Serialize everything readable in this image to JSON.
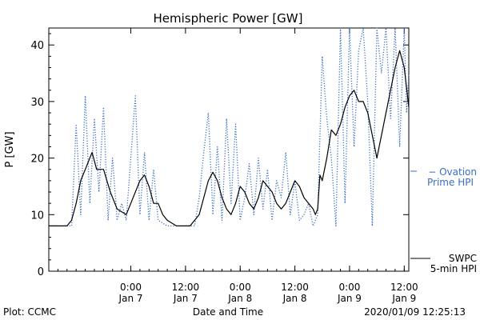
{
  "chart_data": {
    "type": "line",
    "title": "Hemispheric Power [GW]",
    "xlabel": "Date and Time",
    "ylabel": "P [GW]",
    "xlim": [
      "2020-01-06 06:00",
      "2020-01-09 13:00"
    ],
    "ylim": [
      0,
      43
    ],
    "yticks": [
      0,
      10,
      20,
      30,
      40
    ],
    "xticks": [
      {
        "t": "2020-01-07 00:00",
        "label1": "0:00",
        "label2": "Jan 7"
      },
      {
        "t": "2020-01-07 12:00",
        "label1": "12:00",
        "label2": "Jan 7"
      },
      {
        "t": "2020-01-08 00:00",
        "label1": "0:00",
        "label2": "Jan 8"
      },
      {
        "t": "2020-01-08 12:00",
        "label1": "12:00",
        "label2": "Jan 8"
      },
      {
        "t": "2020-01-09 00:00",
        "label1": "0:00",
        "label2": "Jan 9"
      },
      {
        "t": "2020-01-09 12:00",
        "label1": "12:00",
        "label2": "Jan 9"
      }
    ],
    "footer_left": "Plot: CCMC",
    "footer_right": "2020/01/09 12:25:13",
    "series": [
      {
        "name": "SWPC 5-min HPI",
        "legend_line1": "SWPC",
        "legend_line2": "5-min HPI",
        "color": "#000000",
        "style": "solid",
        "points": [
          [
            "2020-01-06 06:00",
            8
          ],
          [
            "2020-01-06 10:00",
            8
          ],
          [
            "2020-01-06 11:00",
            9
          ],
          [
            "2020-01-06 12:00",
            12
          ],
          [
            "2020-01-06 13:00",
            16
          ],
          [
            "2020-01-06 14:00",
            18
          ],
          [
            "2020-01-06 15:30",
            21
          ],
          [
            "2020-01-06 16:30",
            18
          ],
          [
            "2020-01-06 18:00",
            18
          ],
          [
            "2020-01-06 19:30",
            14
          ],
          [
            "2020-01-06 21:00",
            11
          ],
          [
            "2020-01-06 23:00",
            10
          ],
          [
            "2020-01-07 00:00",
            12
          ],
          [
            "2020-01-07 02:00",
            16
          ],
          [
            "2020-01-07 03:00",
            17
          ],
          [
            "2020-01-07 04:00",
            15
          ],
          [
            "2020-01-07 05:00",
            12
          ],
          [
            "2020-01-07 06:00",
            12
          ],
          [
            "2020-01-07 07:00",
            10
          ],
          [
            "2020-01-07 08:00",
            9
          ],
          [
            "2020-01-07 10:00",
            8
          ],
          [
            "2020-01-07 13:00",
            8
          ],
          [
            "2020-01-07 14:00",
            9
          ],
          [
            "2020-01-07 15:00",
            10
          ],
          [
            "2020-01-07 16:00",
            13
          ],
          [
            "2020-01-07 17:00",
            16
          ],
          [
            "2020-01-07 18:00",
            17.5
          ],
          [
            "2020-01-07 19:00",
            16
          ],
          [
            "2020-01-07 20:00",
            13
          ],
          [
            "2020-01-07 21:00",
            11
          ],
          [
            "2020-01-07 22:00",
            10
          ],
          [
            "2020-01-07 23:00",
            12
          ],
          [
            "2020-01-08 00:00",
            15
          ],
          [
            "2020-01-08 01:00",
            14
          ],
          [
            "2020-01-08 02:00",
            12
          ],
          [
            "2020-01-08 03:00",
            11
          ],
          [
            "2020-01-08 04:00",
            13
          ],
          [
            "2020-01-08 05:00",
            16
          ],
          [
            "2020-01-08 06:00",
            15
          ],
          [
            "2020-01-08 07:00",
            14
          ],
          [
            "2020-01-08 08:00",
            12
          ],
          [
            "2020-01-08 09:00",
            11
          ],
          [
            "2020-01-08 10:00",
            12
          ],
          [
            "2020-01-08 11:00",
            14
          ],
          [
            "2020-01-08 12:00",
            16
          ],
          [
            "2020-01-08 13:00",
            15
          ],
          [
            "2020-01-08 14:00",
            13
          ],
          [
            "2020-01-08 15:00",
            12
          ],
          [
            "2020-01-08 16:00",
            11
          ],
          [
            "2020-01-08 16:30",
            10
          ],
          [
            "2020-01-08 17:00",
            11
          ],
          [
            "2020-01-08 17:30",
            17
          ],
          [
            "2020-01-08 18:00",
            16
          ],
          [
            "2020-01-08 19:00",
            20
          ],
          [
            "2020-01-08 20:00",
            25
          ],
          [
            "2020-01-08 21:00",
            24
          ],
          [
            "2020-01-08 22:00",
            26
          ],
          [
            "2020-01-08 23:00",
            29
          ],
          [
            "2020-01-09 00:00",
            31
          ],
          [
            "2020-01-09 01:00",
            32
          ],
          [
            "2020-01-09 02:00",
            30
          ],
          [
            "2020-01-09 03:00",
            30
          ],
          [
            "2020-01-09 04:00",
            28
          ],
          [
            "2020-01-09 05:00",
            24
          ],
          [
            "2020-01-09 06:00",
            20
          ],
          [
            "2020-01-09 07:00",
            24
          ],
          [
            "2020-01-09 08:00",
            28
          ],
          [
            "2020-01-09 09:00",
            32
          ],
          [
            "2020-01-09 10:00",
            36
          ],
          [
            "2020-01-09 11:00",
            39
          ],
          [
            "2020-01-09 12:00",
            36
          ],
          [
            "2020-01-09 13:00",
            29
          ]
        ]
      },
      {
        "name": "Ovation Prime HPI",
        "legend_line1": "− Ovation",
        "legend_line2": "Prime HPI",
        "color": "#3a6fc4",
        "style": "dotted",
        "points": [
          [
            "2020-01-06 06:00",
            8
          ],
          [
            "2020-01-06 11:00",
            8
          ],
          [
            "2020-01-06 12:00",
            26
          ],
          [
            "2020-01-06 13:00",
            10
          ],
          [
            "2020-01-06 14:00",
            31
          ],
          [
            "2020-01-06 15:00",
            12
          ],
          [
            "2020-01-06 16:00",
            27
          ],
          [
            "2020-01-06 17:00",
            14
          ],
          [
            "2020-01-06 18:00",
            29
          ],
          [
            "2020-01-06 19:00",
            9
          ],
          [
            "2020-01-06 20:00",
            20
          ],
          [
            "2020-01-06 21:00",
            9
          ],
          [
            "2020-01-06 22:00",
            12
          ],
          [
            "2020-01-06 23:00",
            9
          ],
          [
            "2020-01-07 00:00",
            20
          ],
          [
            "2020-01-07 01:00",
            31
          ],
          [
            "2020-01-07 02:00",
            10
          ],
          [
            "2020-01-07 03:00",
            21
          ],
          [
            "2020-01-07 04:00",
            9
          ],
          [
            "2020-01-07 05:00",
            18
          ],
          [
            "2020-01-07 06:00",
            9
          ],
          [
            "2020-01-07 08:00",
            8
          ],
          [
            "2020-01-07 14:00",
            8
          ],
          [
            "2020-01-07 15:00",
            13
          ],
          [
            "2020-01-07 16:00",
            21
          ],
          [
            "2020-01-07 17:00",
            28
          ],
          [
            "2020-01-07 18:00",
            10
          ],
          [
            "2020-01-07 19:00",
            22
          ],
          [
            "2020-01-07 20:00",
            9
          ],
          [
            "2020-01-07 21:00",
            27
          ],
          [
            "2020-01-07 22:00",
            12
          ],
          [
            "2020-01-07 23:00",
            26
          ],
          [
            "2020-01-08 00:00",
            9
          ],
          [
            "2020-01-08 01:00",
            13
          ],
          [
            "2020-01-08 02:00",
            19
          ],
          [
            "2020-01-08 03:00",
            10
          ],
          [
            "2020-01-08 04:00",
            20
          ],
          [
            "2020-01-08 05:00",
            11
          ],
          [
            "2020-01-08 06:00",
            18
          ],
          [
            "2020-01-08 07:00",
            9
          ],
          [
            "2020-01-08 08:00",
            16
          ],
          [
            "2020-01-08 09:00",
            13
          ],
          [
            "2020-01-08 10:00",
            21
          ],
          [
            "2020-01-08 11:00",
            10
          ],
          [
            "2020-01-08 12:00",
            16
          ],
          [
            "2020-01-08 13:00",
            9
          ],
          [
            "2020-01-08 14:00",
            10
          ],
          [
            "2020-01-08 15:00",
            12
          ],
          [
            "2020-01-08 16:00",
            8
          ],
          [
            "2020-01-08 17:00",
            10
          ],
          [
            "2020-01-08 18:00",
            38
          ],
          [
            "2020-01-08 19:00",
            27
          ],
          [
            "2020-01-08 20:00",
            20
          ],
          [
            "2020-01-08 21:00",
            8
          ],
          [
            "2020-01-08 22:00",
            43
          ],
          [
            "2020-01-08 23:00",
            12
          ],
          [
            "2020-01-09 00:00",
            43
          ],
          [
            "2020-01-09 01:00",
            22
          ],
          [
            "2020-01-09 02:00",
            39
          ],
          [
            "2020-01-09 03:00",
            43
          ],
          [
            "2020-01-09 04:00",
            30
          ],
          [
            "2020-01-09 05:00",
            8
          ],
          [
            "2020-01-09 06:00",
            43
          ],
          [
            "2020-01-09 07:00",
            35
          ],
          [
            "2020-01-09 08:00",
            43
          ],
          [
            "2020-01-09 09:00",
            27
          ],
          [
            "2020-01-09 10:00",
            43
          ],
          [
            "2020-01-09 11:00",
            22
          ],
          [
            "2020-01-09 12:00",
            43
          ],
          [
            "2020-01-09 12:30",
            28
          ],
          [
            "2020-01-09 13:00",
            35
          ]
        ]
      }
    ]
  }
}
